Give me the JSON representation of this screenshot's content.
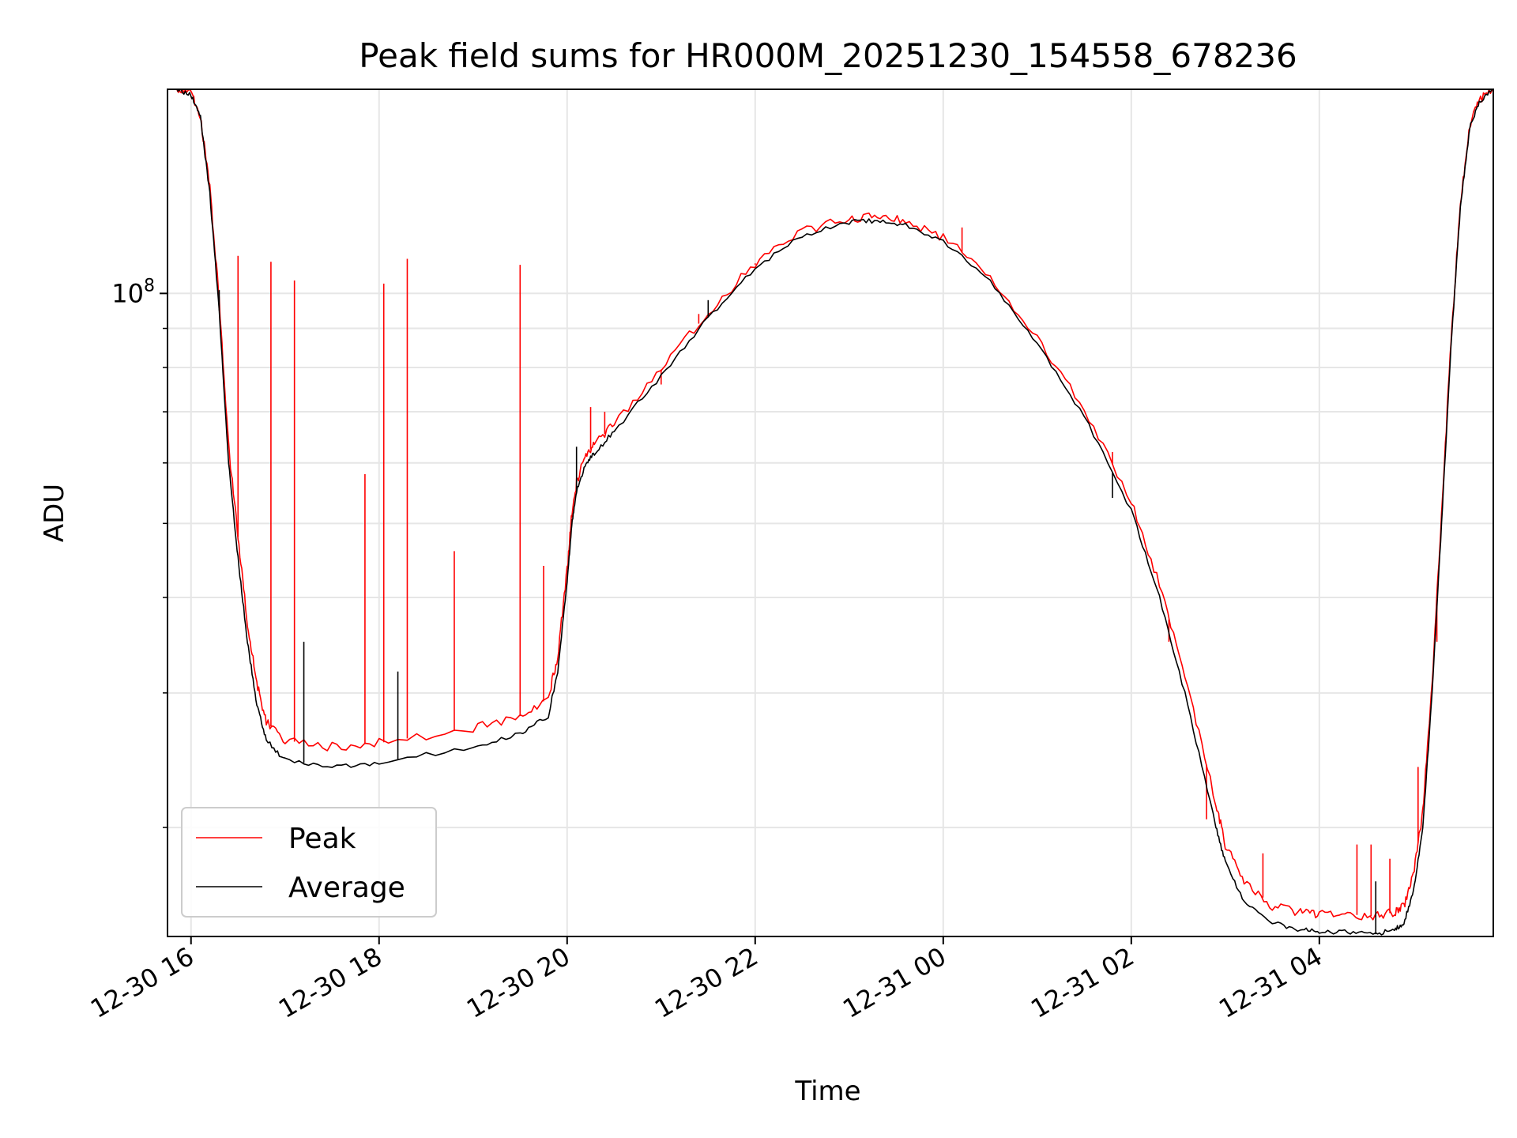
{
  "chart_data": {
    "type": "line",
    "title": "Peak field sums for HR000M_20251230_154558_678236",
    "xlabel": "Time",
    "ylabel": "ADU",
    "yscale": "log",
    "ylim": [
      14400000,
      185000000
    ],
    "xlim_hours": [
      -0.25,
      13.85
    ],
    "x_unit": "hours since 2025-12-30 16:00",
    "grid": true,
    "legend_position": "lower-left",
    "x_ticks": [
      {
        "h": 0,
        "label": "12-30 16"
      },
      {
        "h": 2,
        "label": "12-30 18"
      },
      {
        "h": 4,
        "label": "12-30 20"
      },
      {
        "h": 6,
        "label": "12-30 22"
      },
      {
        "h": 8,
        "label": "12-31 00"
      },
      {
        "h": 10,
        "label": "12-31 02"
      },
      {
        "h": 12,
        "label": "12-31 04"
      }
    ],
    "y_major_tick": {
      "value": 100000000,
      "label_base": "10",
      "label_exp": "8"
    },
    "y_minor_ticks": [
      20000000,
      30000000,
      40000000,
      50000000,
      60000000,
      70000000,
      80000000,
      90000000,
      200000000
    ],
    "series": [
      {
        "name": "Average",
        "color": "#000000",
        "x": [
          -0.15,
          0,
          0.1,
          0.2,
          0.3,
          0.4,
          0.5,
          0.6,
          0.7,
          0.8,
          1.0,
          1.5,
          2.0,
          3.0,
          3.5,
          3.8,
          3.9,
          4.0,
          4.05,
          4.1,
          4.2,
          4.3,
          4.5,
          5.0,
          5.5,
          6.0,
          6.5,
          7.0,
          7.3,
          7.6,
          8.0,
          8.5,
          9.0,
          9.5,
          10.0,
          10.3,
          10.6,
          10.9,
          11.0,
          11.2,
          11.5,
          11.8,
          12.0,
          12.3,
          12.6,
          12.8,
          12.9,
          13.0,
          13.1,
          13.2,
          13.3,
          13.4,
          13.5,
          13.6,
          13.7,
          13.85
        ],
        "y": [
          185000000,
          182000000,
          170000000,
          135000000,
          95000000,
          60000000,
          45000000,
          35000000,
          29000000,
          26000000,
          24500000,
          24000000,
          24300000,
          25500000,
          26500000,
          28000000,
          32000000,
          42000000,
          50000000,
          55000000,
          60000000,
          62000000,
          66000000,
          78000000,
          93000000,
          108000000,
          119000000,
          124000000,
          124500000,
          123000000,
          117000000,
          104000000,
          86000000,
          69000000,
          52000000,
          40000000,
          29000000,
          20000000,
          18000000,
          16000000,
          15000000,
          14700000,
          14600000,
          14600000,
          14500000,
          14700000,
          15000000,
          16500000,
          20000000,
          30000000,
          50000000,
          85000000,
          130000000,
          165000000,
          178000000,
          185000000
        ]
      },
      {
        "name": "Peak",
        "color": "#ff0000",
        "x": [
          -0.15,
          0,
          0.1,
          0.2,
          0.3,
          0.4,
          0.5,
          0.6,
          0.7,
          0.8,
          1.0,
          1.5,
          2.0,
          3.0,
          3.5,
          3.8,
          3.9,
          4.0,
          4.05,
          4.1,
          4.2,
          4.3,
          4.5,
          5.0,
          5.5,
          6.0,
          6.5,
          7.0,
          7.3,
          7.6,
          8.0,
          8.5,
          9.0,
          9.5,
          10.0,
          10.3,
          10.6,
          10.9,
          11.0,
          11.2,
          11.5,
          11.8,
          12.0,
          12.3,
          12.6,
          12.8,
          12.9,
          13.0,
          13.1,
          13.2,
          13.3,
          13.4,
          13.5,
          13.6,
          13.7,
          13.85
        ],
        "y": [
          185000000,
          183000000,
          171000000,
          137000000,
          98000000,
          63000000,
          48000000,
          37000000,
          31000000,
          27500000,
          26000000,
          25500000,
          25800000,
          27000000,
          28000000,
          29500000,
          33500000,
          43500000,
          51500000,
          56500000,
          61500000,
          63500000,
          67500000,
          79500000,
          94500000,
          109500000,
          120500000,
          125500000,
          126000000,
          124500000,
          118500000,
          105500000,
          87500000,
          70500000,
          53500000,
          41500000,
          30500000,
          21500000,
          19000000,
          17000000,
          15800000,
          15500000,
          15400000,
          15400000,
          15300000,
          15500000,
          15800000,
          17300000,
          21000000,
          31000000,
          51500000,
          86500000,
          131500000,
          166000000,
          179000000,
          185000000
        ]
      }
    ],
    "peak_spikes": [
      {
        "x": 0.5,
        "y": 112000000
      },
      {
        "x": 0.85,
        "y": 110000000
      },
      {
        "x": 1.1,
        "y": 104000000
      },
      {
        "x": 1.85,
        "y": 58000000
      },
      {
        "x": 2.05,
        "y": 103000000
      },
      {
        "x": 2.3,
        "y": 111000000
      },
      {
        "x": 2.8,
        "y": 46000000
      },
      {
        "x": 3.5,
        "y": 109000000
      },
      {
        "x": 3.75,
        "y": 44000000
      },
      {
        "x": 4.25,
        "y": 71000000
      },
      {
        "x": 4.4,
        "y": 70000000
      },
      {
        "x": 5.0,
        "y": 76000000
      },
      {
        "x": 5.4,
        "y": 94000000
      },
      {
        "x": 6.0,
        "y": 109000000
      },
      {
        "x": 8.2,
        "y": 122000000
      },
      {
        "x": 9.8,
        "y": 62000000
      },
      {
        "x": 10.4,
        "y": 35000000
      },
      {
        "x": 10.8,
        "y": 20500000
      },
      {
        "x": 11.4,
        "y": 18500000
      },
      {
        "x": 12.4,
        "y": 19000000
      },
      {
        "x": 12.55,
        "y": 19000000
      },
      {
        "x": 12.75,
        "y": 18200000
      },
      {
        "x": 13.05,
        "y": 24000000
      },
      {
        "x": 13.25,
        "y": 35000000
      }
    ],
    "average_spikes": [
      {
        "x": 0.3,
        "y": 101000000
      },
      {
        "x": 1.2,
        "y": 35000000
      },
      {
        "x": 2.2,
        "y": 32000000
      },
      {
        "x": 4.1,
        "y": 63000000
      },
      {
        "x": 5.5,
        "y": 98000000
      },
      {
        "x": 9.8,
        "y": 54000000
      },
      {
        "x": 12.6,
        "y": 17000000
      }
    ]
  }
}
